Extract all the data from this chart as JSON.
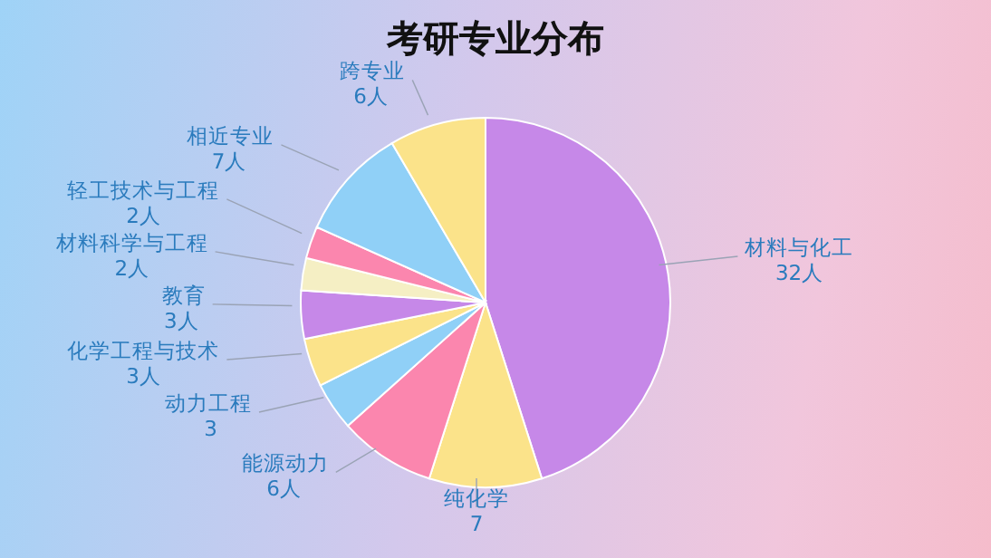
{
  "chart_data": {
    "type": "pie",
    "title": "考研专业分布",
    "categories": [
      "材料与化工",
      "纯化学",
      "能源动力",
      "动力工程",
      "化学工程与技术",
      "教育",
      "材料科学与工程",
      "轻工技术与工程",
      "相近专业",
      "跨专业"
    ],
    "values": [
      32,
      7,
      6,
      3,
      3,
      3,
      2,
      2,
      7,
      6
    ],
    "value_labels": [
      "32人",
      "7",
      "6人",
      "3",
      "3人",
      "3人",
      "2人",
      "2人",
      "7人",
      "6人"
    ],
    "colors": [
      "#c688e8",
      "#fbe38a",
      "#fb86ae",
      "#90d0f7",
      "#fbe38a",
      "#c688e8",
      "#f5efc4",
      "#fb86ae",
      "#90d0f7",
      "#fbe38a"
    ],
    "legend": false
  }
}
